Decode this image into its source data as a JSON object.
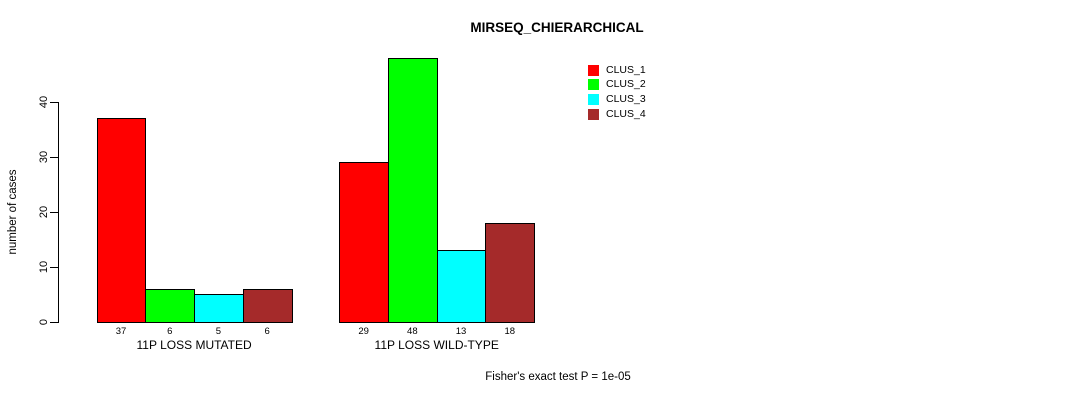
{
  "title": "MIRSEQ_CHIERARCHICAL",
  "footer": "Fisher's exact test P = 1e-05",
  "ylabel": "number of cases",
  "chart_data": {
    "type": "bar",
    "title": "MIRSEQ_CHIERARCHICAL",
    "xlabel": "",
    "ylabel": "number of cases",
    "ylim": [
      0,
      40
    ],
    "yticks": [
      0,
      10,
      20,
      30,
      40
    ],
    "grid": false,
    "legend_position": "top-right",
    "categories": [
      "11P LOSS MUTATED",
      "11P LOSS WILD-TYPE"
    ],
    "series": [
      {
        "name": "CLUS_1",
        "color": "#FF0000",
        "values": [
          37,
          29
        ]
      },
      {
        "name": "CLUS_2",
        "color": "#00FF00",
        "values": [
          6,
          48
        ]
      },
      {
        "name": "CLUS_3",
        "color": "#00FFFF",
        "values": [
          5,
          13
        ]
      },
      {
        "name": "CLUS_4",
        "color": "#A52A2A",
        "values": [
          6,
          18
        ]
      }
    ],
    "bar_value_labels": {
      "11P LOSS MUTATED": [
        37,
        6,
        5,
        6
      ],
      "11P LOSS WILD-TYPE": [
        29,
        48,
        13,
        18
      ]
    },
    "annotation": "Fisher's exact test P = 1e-05"
  }
}
